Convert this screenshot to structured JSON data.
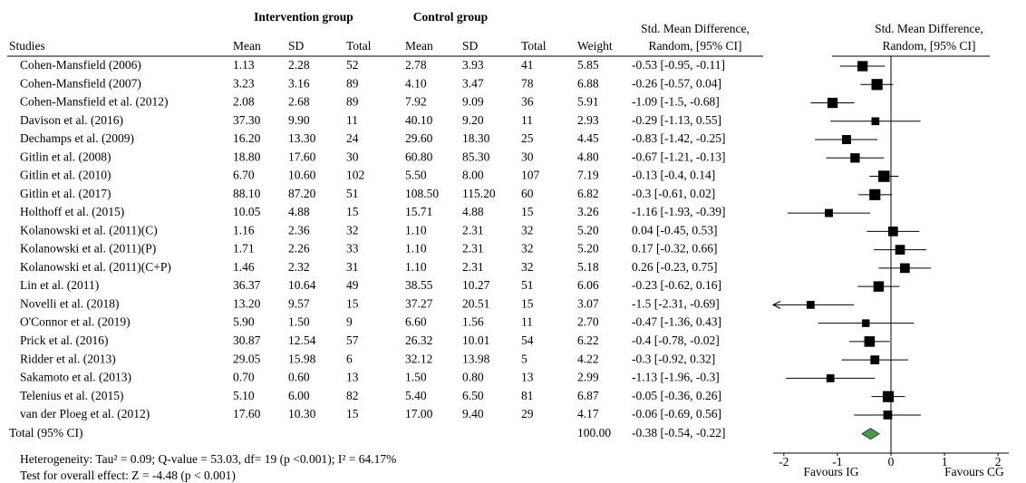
{
  "table": {
    "group_headers": [
      "Intervention group",
      "Control group"
    ],
    "columns": [
      "Studies",
      "Mean",
      "SD",
      "Total",
      "Mean",
      "SD",
      "Total",
      "Weight"
    ],
    "ci_header": [
      "Std. Mean Difference,",
      "Random, [95% CI]"
    ],
    "rows": [
      [
        "Cohen-Mansfield (2006)",
        "1.13",
        "2.28",
        "52",
        "2.78",
        "3.93",
        "41",
        "5.85",
        "-0.53 [-0.95, -0.11]"
      ],
      [
        "Cohen-Mansfield (2007)",
        "3.23",
        "3.16",
        "89",
        "4.10",
        "3.47",
        "78",
        "6.88",
        "-0.26 [-0.57, 0.04]"
      ],
      [
        "Cohen-Mansfield et al. (2012)",
        "2.08",
        "2.68",
        "89",
        "7.92",
        "9.09",
        "36",
        "5.91",
        "-1.09 [-1.5, -0.68]"
      ],
      [
        "Davison et al. (2016)",
        "37.30",
        "9.90",
        "11",
        "40.10",
        "9.20",
        "11",
        "2.93",
        "-0.29 [-1.13, 0.55]"
      ],
      [
        "Dechamps et al. (2009)",
        "16.20",
        "13.30",
        "24",
        "29.60",
        "18.30",
        "25",
        "4.45",
        "-0.83 [-1.42, -0.25]"
      ],
      [
        "Gitlin et al. (2008)",
        "18.80",
        "17.60",
        "30",
        "60.80",
        "85.30",
        "30",
        "4.80",
        "-0.67 [-1.21, -0.13]"
      ],
      [
        "Gitlin et al. (2010)",
        "6.70",
        "10.60",
        "102",
        "5.50",
        "8.00",
        "107",
        "7.19",
        "-0.13 [-0.4, 0.14]"
      ],
      [
        "Gitlin et al. (2017)",
        "88.10",
        "87.20",
        "51",
        "108.50",
        "115.20",
        "60",
        "6.82",
        "-0.3 [-0.61, 0.02]"
      ],
      [
        "Holthoff et al. (2015)",
        "10.05",
        "4.88",
        "15",
        "15.71",
        "4.88",
        "15",
        "3.26",
        "-1.16 [-1.93, -0.39]"
      ],
      [
        "Kolanowski et al. (2011)(C)",
        "1.16",
        "2.36",
        "32",
        "1.10",
        "2.31",
        "32",
        "5.20",
        "0.04 [-0.45, 0.53]"
      ],
      [
        "Kolanowski et al. (2011)(P)",
        "1.71",
        "2.26",
        "33",
        "1.10",
        "2.31",
        "32",
        "5.20",
        "0.17 [-0.32, 0.66]"
      ],
      [
        "Kolanowski et al. (2011)(C+P)",
        "1.46",
        "2.32",
        "31",
        "1.10",
        "2.31",
        "32",
        "5.18",
        "0.26 [-0.23, 0.75]"
      ],
      [
        "Lin et al. (2011)",
        "36.37",
        "10.64",
        "49",
        "38.55",
        "10.27",
        "51",
        "6.06",
        "-0.23 [-0.62, 0.16]"
      ],
      [
        "Novelli et al. (2018)",
        "13.20",
        "9.57",
        "15",
        "37.27",
        "20.51",
        "15",
        "3.07",
        "-1.5 [-2.31, -0.69]"
      ],
      [
        "O'Connor et al. (2019)",
        "5.90",
        "1.50",
        "9",
        "6.60",
        "1.56",
        "11",
        "2.70",
        "-0.47 [-1.36, 0.43]"
      ],
      [
        "Prick et al. (2016)",
        "30.87",
        "12.54",
        "57",
        "26.32",
        "10.01",
        "54",
        "6.22",
        "-0.4 [-0.78, -0.02]"
      ],
      [
        "Ridder et al. (2013)",
        "29.05",
        "15.98",
        "6",
        "32.12",
        "13.98",
        "5",
        "4.22",
        "-0.3 [-0.92, 0.32]"
      ],
      [
        "Sakamoto et al. (2013)",
        "0.70",
        "0.60",
        "13",
        "1.50",
        "0.80",
        "13",
        "2.99",
        "-1.13 [-1.96, -0.3]"
      ],
      [
        "Telenius et al.  (2015)",
        "5.10",
        "6.00",
        "82",
        "5.40",
        "6.50",
        "81",
        "6.87",
        "-0.05 [-0.36, 0.26]"
      ],
      [
        "van der Ploeg et al. (2012)",
        "17.60",
        "10.30",
        "15",
        "17.00",
        "9.40",
        "29",
        "4.17",
        "-0.06 [-0.69, 0.56]"
      ]
    ],
    "total": {
      "label": "Total (95% CI)",
      "weight": "100.00",
      "ci": "-0.38 [-0.54, -0.22]"
    },
    "heterogeneity": "Heterogeneity: Tau² = 0.09; Q-value = 53.03, df= 19 (p <0.001); I² = 64.17%",
    "overall_effect": "Test for overall effect: Z = -4.48 (p < 0.001)"
  },
  "chart_data": {
    "type": "forest",
    "title_lines": [
      "Std. Mean Difference,",
      "Random, [95% CI]"
    ],
    "x_labels": [
      "Favours IG",
      "Favours CG"
    ],
    "estimate": [
      -0.53,
      -0.26,
      -1.09,
      -0.29,
      -0.83,
      -0.67,
      -0.13,
      -0.3,
      -1.16,
      0.04,
      0.17,
      0.26,
      -0.23,
      -1.5,
      -0.47,
      -0.4,
      -0.3,
      -1.13,
      -0.05,
      -0.06
    ],
    "lower": [
      -0.95,
      -0.57,
      -1.5,
      -1.13,
      -1.42,
      -1.21,
      -0.4,
      -0.61,
      -1.93,
      -0.45,
      -0.32,
      -0.23,
      -0.62,
      -2.31,
      -1.36,
      -0.78,
      -0.92,
      -1.96,
      -0.36,
      -0.69
    ],
    "upper": [
      -0.11,
      0.04,
      -0.68,
      0.55,
      -0.25,
      -0.13,
      0.14,
      0.02,
      -0.39,
      0.53,
      0.66,
      0.75,
      0.16,
      -0.69,
      0.43,
      -0.02,
      0.32,
      -0.3,
      0.26,
      0.56
    ],
    "weight": [
      5.85,
      6.88,
      5.91,
      2.93,
      4.45,
      4.8,
      7.19,
      6.82,
      3.26,
      5.2,
      5.2,
      5.18,
      6.06,
      3.07,
      2.7,
      6.22,
      4.22,
      2.99,
      6.87,
      4.17
    ],
    "pooled": {
      "estimate": -0.38,
      "lower": -0.54,
      "upper": -0.22
    },
    "xlim": [
      -2.2,
      2.2
    ],
    "xticks": [
      -2,
      -1,
      0,
      1,
      2
    ],
    "color": "#000000",
    "pooled_color": "#4f9a3c",
    "pooled_edge": "#1f3d7a"
  }
}
